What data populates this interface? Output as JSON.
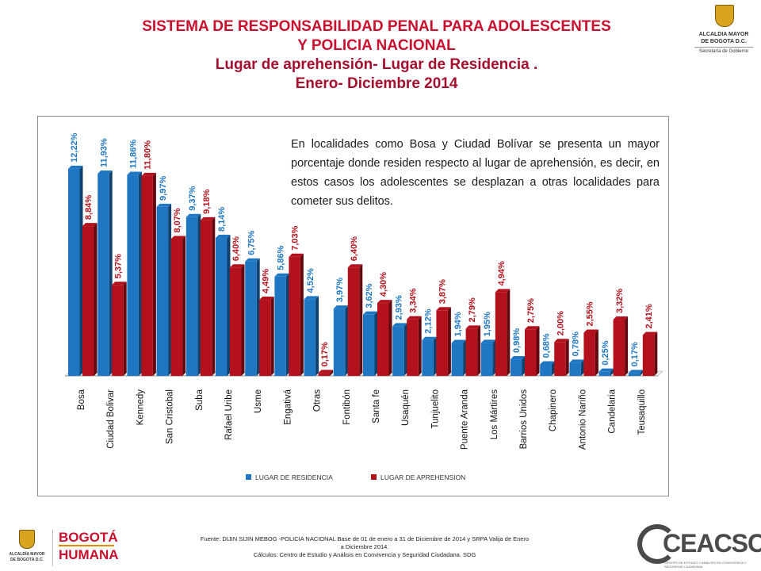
{
  "header": {
    "line1": "SISTEMA DE RESPONSABILIDAD PENAL PARA ADOLESCENTES",
    "line2": "Y POLICIA NACIONAL",
    "line3": "Lugar de aprehensión- Lugar de Residencia .",
    "line4": "Enero- Diciembre 2014"
  },
  "crest": {
    "line1": "ALCALDIA MAYOR",
    "line2": "DE BOGOTA D.C.",
    "line3": "Secretaría de Gobierno"
  },
  "note": "En localidades como Bosa y Ciudad Bolívar se presenta un mayor porcentaje donde residen respecto al lugar de aprehensión, es decir, en estos casos los adolescentes se desplazan a otras localidades para cometer sus delitos.",
  "source": {
    "line1": "Fuente: DIJIN SIJIN MEBOG -POLICIA NACIONAL Base de 01 de enero a 31 de Diciembre de 2014 y SRPA Valija de Enero",
    "line2": "a Diciembre 2014.",
    "line3": "Cálculos: Centro de Estudio y Análisis en Convivencia y Seguridad Ciudadana. SDG"
  },
  "logos": {
    "alcaldia_line1": "ALCALDÍA MAYOR",
    "alcaldia_line2": "DE BOGOTÁ D.C.",
    "bogota_line1": "BOGOTÁ",
    "bogota_line2": "HUMANA",
    "ceacsc": "CEACSC",
    "ceacsc_sub": "CENTRO DE ESTUDIO Y ANÁLISIS EN CONVIVENCIA Y SEGURIDAD CIUDADANA"
  },
  "colors": {
    "residencia": "#1f77c4",
    "aprehension": "#b3121c",
    "title_red": "#c8102e"
  },
  "chart_data": {
    "type": "bar",
    "categories": [
      "Bosa",
      "Ciudad Bolivar",
      "Kennedy",
      "San Cristobal",
      "Suba",
      "Rafael Uribe",
      "Usme",
      "Engativá",
      "Otras",
      "Fontibón",
      "Santa fe",
      "Usaquén",
      "Tunjuelito",
      "Puente Aranda",
      "Los Mártires",
      "Barrios Unidos",
      "Chapinero",
      "Antonio Nariño",
      "Candelaria",
      "Teusaquillo"
    ],
    "series": [
      {
        "name": "LUGAR DE RESIDENCIA",
        "color": "#1f77c4",
        "values": [
          12.22,
          11.93,
          11.86,
          9.97,
          9.37,
          8.14,
          6.75,
          5.86,
          4.52,
          3.97,
          3.62,
          2.93,
          2.12,
          1.94,
          1.95,
          0.98,
          0.68,
          0.78,
          0.25,
          0.17
        ],
        "labels": [
          "12,22%",
          "11,93%",
          "11,86%",
          "9,97%",
          "9,37%",
          "8,14%",
          "6,75%",
          "5,86%",
          "4,52%",
          "3,97%",
          "3,62%",
          "2,93%",
          "2,12%",
          "1,94%",
          "1,95%",
          "0,98%",
          "0,68%",
          "0,78%",
          "0,25%",
          "0,17%"
        ]
      },
      {
        "name": "LUGAR DE APREHENSION",
        "color": "#b3121c",
        "values": [
          8.84,
          5.37,
          11.8,
          8.07,
          9.18,
          6.4,
          4.49,
          7.03,
          0.17,
          6.4,
          4.3,
          3.34,
          3.87,
          2.79,
          4.94,
          2.75,
          2.0,
          2.55,
          3.32,
          2.41
        ],
        "labels": [
          "8,84%",
          "5,37%",
          "11,80%",
          "8,07%",
          "9,18%",
          "6,40%",
          "4,49%",
          "7,03%",
          "0,17%",
          "6,40%",
          "4,30%",
          "3,34%",
          "3,87%",
          "2,79%",
          "4,94%",
          "2,75%",
          "2,00%",
          "2,55%",
          "3,32%",
          "2,41%"
        ]
      }
    ],
    "ylim": [
      0,
      12.4
    ],
    "legend": "bottom",
    "grid": false
  }
}
